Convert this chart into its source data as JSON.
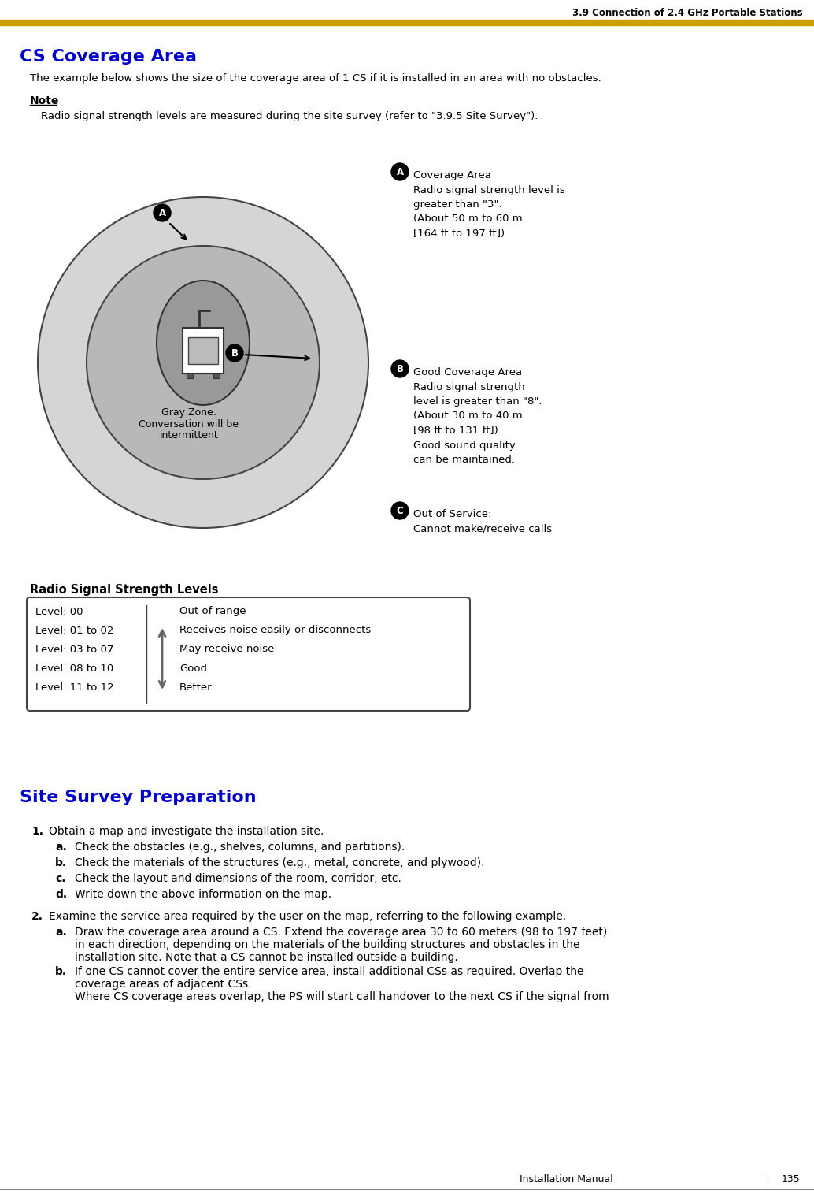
{
  "page_header_text": "3.9 Connection of 2.4 GHz Portable Stations",
  "header_bar_color": "#C8A000",
  "title": "CS Coverage Area",
  "title_color": "#0000CC",
  "intro_text": "The example below shows the size of the coverage area of 1 CS if it is installed in an area with no obstacles.",
  "note_label": "Note",
  "note_text": "Radio signal strength levels are measured during the site survey (refer to \"3.9.5 Site Survey\").",
  "circle_outer_color": "#D5D5D5",
  "circle_mid_color": "#B8B8B8",
  "circle_inner_color": "#999999",
  "annotation_A_label": "Coverage Area\nRadio signal strength level is\ngreater than \"3\".\n(About 50 m to 60 m\n[164 ft to 197 ft])",
  "annotation_B_label": "Good Coverage Area\nRadio signal strength\nlevel is greater than \"8\".\n(About 30 m to 40 m\n[98 ft to 131 ft])\nGood sound quality\ncan be maintained.",
  "annotation_C_label": "Out of Service:\nCannot make/receive calls",
  "gray_zone_text": "Gray Zone:\nConversation will be\nintermittent",
  "rss_title": "Radio Signal Strength Levels",
  "rss_levels": [
    "Level: 00",
    "Level: 01 to 02",
    "Level: 03 to 07",
    "Level: 08 to 10",
    "Level: 11 to 12"
  ],
  "rss_descriptions": [
    "Out of range",
    "Receives noise easily or disconnects",
    "May receive noise",
    "Good",
    "Better"
  ],
  "section2_title": "Site Survey Preparation",
  "section2_title_color": "#0000CC",
  "item1_text": "Obtain a map and investigate the installation site.",
  "item1a": "Check the obstacles (e.g., shelves, columns, and partitions).",
  "item1b": "Check the materials of the structures (e.g., metal, concrete, and plywood).",
  "item1c": "Check the layout and dimensions of the room, corridor, etc.",
  "item1d": "Write down the above information on the map.",
  "item2_text": "Examine the service area required by the user on the map, referring to the following example.",
  "item2a": "Draw the coverage area around a CS. Extend the coverage area 30 to 60 meters (98 to 197 feet)\nin each direction, depending on the materials of the building structures and obstacles in the\ninstallation site. Note that a CS cannot be installed outside a building.",
  "item2b": "If one CS cannot cover the entire service area, install additional CSs as required. Overlap the\ncoverage areas of adjacent CSs.\nWhere CS coverage areas overlap, the PS will start call handover to the next CS if the signal from",
  "footer_text": "Installation Manual",
  "footer_page": "135",
  "bg_color": "#FFFFFF"
}
